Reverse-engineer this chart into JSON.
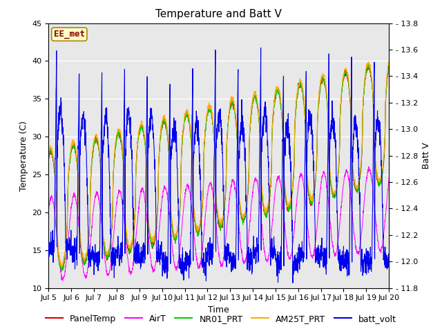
{
  "title": "Temperature and Batt V",
  "xlabel": "Time",
  "ylabel_left": "Temperature (C)",
  "ylabel_right": "Batt V",
  "annotation_text": "EE_met",
  "annotation_bg": "#ffffcc",
  "annotation_border": "#aa8800",
  "annotation_text_color": "#880000",
  "ylim_left": [
    10,
    45
  ],
  "ylim_right": [
    11.8,
    13.8
  ],
  "xtick_labels": [
    "Jul 5",
    "Jul 6",
    "Jul 7",
    "Jul 8",
    "Jul 9",
    "Jul 10",
    "Jul 11",
    "Jul 12",
    "Jul 13",
    "Jul 14",
    "Jul 15",
    "Jul 16",
    "Jul 17",
    "Jul 18",
    "Jul 19",
    "Jul 20"
  ],
  "legend_entries": [
    "PanelTemp",
    "AirT",
    "NR01_PRT",
    "AM25T_PRT",
    "batt_volt"
  ],
  "legend_colors": [
    "#dd0000",
    "#ff00ff",
    "#00cc00",
    "#ffaa00",
    "#0000ee"
  ],
  "background_color": "#ffffff",
  "plot_bg_color": "#e8e8e8",
  "grid_color": "#ffffff",
  "title_fontsize": 11,
  "label_fontsize": 9,
  "tick_fontsize": 8,
  "legend_fontsize": 9,
  "figsize": [
    6.4,
    4.8
  ],
  "dpi": 100
}
